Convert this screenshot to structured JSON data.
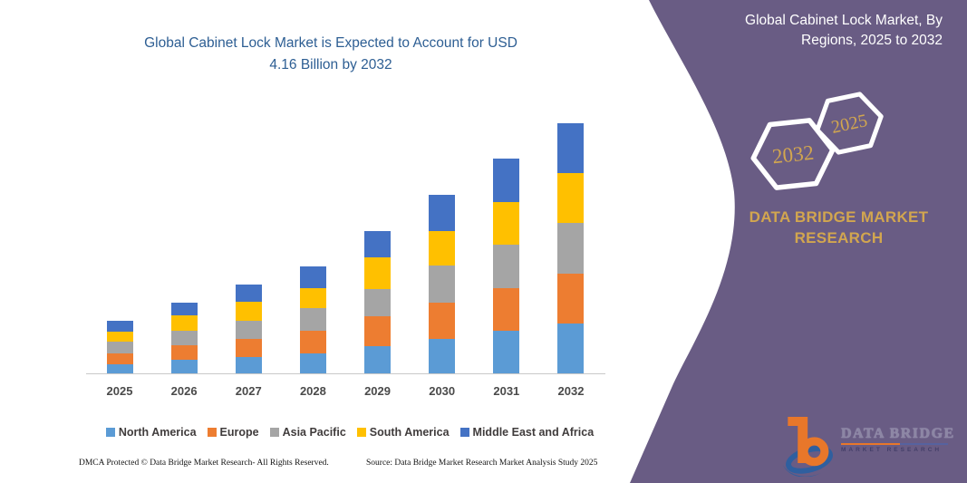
{
  "left": {
    "title_line1": "Global Cabinet Lock Market is Expected to Account for USD",
    "title_line2": "4.16 Billion by 2032",
    "footer_left": "DMCA Protected © Data Bridge Market Research-  All Rights Reserved.",
    "footer_source": "Source: Data Bridge Market Research  Market Analysis Study 2025"
  },
  "panel": {
    "title_line1": "Global Cabinet Lock Market, By",
    "title_line2": "Regions, 2025 to 2032",
    "hex_back_year": "2032",
    "hex_front_year": "2025",
    "brand_line1": "DATA BRIDGE MARKET",
    "brand_line2": "RESEARCH",
    "logo": {
      "b_glyph": "b",
      "word1": "DATA",
      "word2": "BRIDGE",
      "sub": "MARKET RESEARCH"
    },
    "colors": {
      "panel_purple": "#695C84",
      "gold": "#D2A64F",
      "logo_orange": "#E8772A",
      "logo_blue": "#2F5F9F"
    }
  },
  "chart_data": {
    "type": "bar",
    "stacked": true,
    "title": "Global Cabinet Lock Market is Expected to Account for USD 4.16 Billion by 2032",
    "unit": "USD Billion",
    "categories": [
      "2025",
      "2026",
      "2027",
      "2028",
      "2029",
      "2030",
      "2031",
      "2032"
    ],
    "series": [
      {
        "name": "North America",
        "color": "#5B9BD5",
        "values": [
          0.16,
          0.24,
          0.29,
          0.35,
          0.46,
          0.58,
          0.72,
          0.84
        ]
      },
      {
        "name": "Europe",
        "color": "#ED7D31",
        "values": [
          0.18,
          0.24,
          0.3,
          0.37,
          0.5,
          0.6,
          0.7,
          0.82
        ]
      },
      {
        "name": "Asia Pacific",
        "color": "#A5A5A5",
        "values": [
          0.2,
          0.24,
          0.3,
          0.38,
          0.45,
          0.62,
          0.73,
          0.85
        ]
      },
      {
        "name": "South America",
        "color": "#FFC000",
        "values": [
          0.17,
          0.25,
          0.31,
          0.32,
          0.52,
          0.58,
          0.7,
          0.83
        ]
      },
      {
        "name": "Middle East and Africa",
        "color": "#4472C4",
        "values": [
          0.18,
          0.21,
          0.28,
          0.37,
          0.45,
          0.59,
          0.72,
          0.82
        ]
      }
    ],
    "totals_usd_billion": [
      0.89,
      1.18,
      1.48,
      1.79,
      2.38,
      2.97,
      3.57,
      4.16
    ],
    "ylim": [
      0,
      4.4
    ],
    "grid": false,
    "y_axis_visible": false,
    "legend_position": "bottom"
  }
}
